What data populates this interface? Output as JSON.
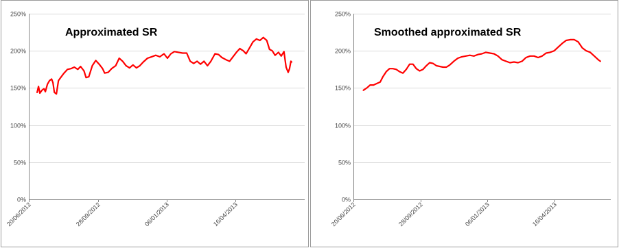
{
  "chart_data": [
    {
      "type": "line",
      "title": "Approximated SR",
      "x_ticks": [
        "20/06/2012",
        "28/09/2012",
        "06/01/2013",
        "16/04/2013"
      ],
      "y_ticks": [
        "0%",
        "50%",
        "100%",
        "150%",
        "200%",
        "250%"
      ],
      "ylim": [
        0,
        250
      ],
      "grid": true,
      "series": [
        {
          "color": "#ff0000",
          "points": [
            {
              "x": "2012-07-02",
              "y": 144
            },
            {
              "x": "2012-07-04",
              "y": 152
            },
            {
              "x": "2012-07-06",
              "y": 143
            },
            {
              "x": "2012-07-09",
              "y": 147
            },
            {
              "x": "2012-07-12",
              "y": 149
            },
            {
              "x": "2012-07-14",
              "y": 145
            },
            {
              "x": "2012-07-17",
              "y": 155
            },
            {
              "x": "2012-07-20",
              "y": 160
            },
            {
              "x": "2012-07-23",
              "y": 162
            },
            {
              "x": "2012-07-25",
              "y": 157
            },
            {
              "x": "2012-07-27",
              "y": 144
            },
            {
              "x": "2012-07-30",
              "y": 142
            },
            {
              "x": "2012-08-02",
              "y": 160
            },
            {
              "x": "2012-08-06",
              "y": 165
            },
            {
              "x": "2012-08-10",
              "y": 170
            },
            {
              "x": "2012-08-15",
              "y": 175
            },
            {
              "x": "2012-08-20",
              "y": 176
            },
            {
              "x": "2012-08-25",
              "y": 178
            },
            {
              "x": "2012-08-30",
              "y": 175
            },
            {
              "x": "2012-09-03",
              "y": 179
            },
            {
              "x": "2012-09-08",
              "y": 173
            },
            {
              "x": "2012-09-11",
              "y": 164
            },
            {
              "x": "2012-09-15",
              "y": 165
            },
            {
              "x": "2012-09-20",
              "y": 180
            },
            {
              "x": "2012-09-25",
              "y": 187
            },
            {
              "x": "2012-09-30",
              "y": 182
            },
            {
              "x": "2012-10-05",
              "y": 176
            },
            {
              "x": "2012-10-08",
              "y": 170
            },
            {
              "x": "2012-10-13",
              "y": 171
            },
            {
              "x": "2012-10-18",
              "y": 176
            },
            {
              "x": "2012-10-24",
              "y": 180
            },
            {
              "x": "2012-10-29",
              "y": 190
            },
            {
              "x": "2012-11-03",
              "y": 186
            },
            {
              "x": "2012-11-08",
              "y": 180
            },
            {
              "x": "2012-11-13",
              "y": 177
            },
            {
              "x": "2012-11-18",
              "y": 181
            },
            {
              "x": "2012-11-23",
              "y": 177
            },
            {
              "x": "2012-11-28",
              "y": 180
            },
            {
              "x": "2012-12-03",
              "y": 185
            },
            {
              "x": "2012-12-09",
              "y": 190
            },
            {
              "x": "2012-12-15",
              "y": 192
            },
            {
              "x": "2012-12-21",
              "y": 194
            },
            {
              "x": "2012-12-27",
              "y": 192
            },
            {
              "x": "2013-01-02",
              "y": 196
            },
            {
              "x": "2013-01-07",
              "y": 190
            },
            {
              "x": "2013-01-12",
              "y": 196
            },
            {
              "x": "2013-01-17",
              "y": 199
            },
            {
              "x": "2013-01-23",
              "y": 198
            },
            {
              "x": "2013-01-29",
              "y": 197
            },
            {
              "x": "2013-02-04",
              "y": 197
            },
            {
              "x": "2013-02-09",
              "y": 186
            },
            {
              "x": "2013-02-14",
              "y": 183
            },
            {
              "x": "2013-02-19",
              "y": 186
            },
            {
              "x": "2013-02-24",
              "y": 182
            },
            {
              "x": "2013-03-01",
              "y": 186
            },
            {
              "x": "2013-03-06",
              "y": 180
            },
            {
              "x": "2013-03-11",
              "y": 186
            },
            {
              "x": "2013-03-17",
              "y": 196
            },
            {
              "x": "2013-03-22",
              "y": 195
            },
            {
              "x": "2013-03-27",
              "y": 191
            },
            {
              "x": "2013-04-02",
              "y": 188
            },
            {
              "x": "2013-04-07",
              "y": 186
            },
            {
              "x": "2013-04-12",
              "y": 192
            },
            {
              "x": "2013-04-17",
              "y": 198
            },
            {
              "x": "2013-04-22",
              "y": 203
            },
            {
              "x": "2013-04-27",
              "y": 200
            },
            {
              "x": "2013-05-01",
              "y": 196
            },
            {
              "x": "2013-05-06",
              "y": 204
            },
            {
              "x": "2013-05-11",
              "y": 212
            },
            {
              "x": "2013-05-16",
              "y": 216
            },
            {
              "x": "2013-05-21",
              "y": 214
            },
            {
              "x": "2013-05-26",
              "y": 218
            },
            {
              "x": "2013-05-31",
              "y": 214
            },
            {
              "x": "2013-06-04",
              "y": 202
            },
            {
              "x": "2013-06-08",
              "y": 200
            },
            {
              "x": "2013-06-12",
              "y": 194
            },
            {
              "x": "2013-06-17",
              "y": 198
            },
            {
              "x": "2013-06-21",
              "y": 193
            },
            {
              "x": "2013-06-25",
              "y": 199
            },
            {
              "x": "2013-06-28",
              "y": 178
            },
            {
              "x": "2013-07-01",
              "y": 171
            },
            {
              "x": "2013-07-03",
              "y": 176
            },
            {
              "x": "2013-07-05",
              "y": 186
            },
            {
              "x": "2013-07-06",
              "y": 185
            }
          ]
        }
      ]
    },
    {
      "type": "line",
      "title": "Smoothed approximated SR",
      "x_ticks": [
        "20/06/2012",
        "28/09/2012",
        "06/01/2013",
        "16/04/2013"
      ],
      "y_ticks": [
        "0%",
        "50%",
        "100%",
        "150%",
        "200%",
        "250%"
      ],
      "ylim": [
        0,
        250
      ],
      "grid": true,
      "series": [
        {
          "color": "#ff0000",
          "points": [
            {
              "x": "2012-07-05",
              "y": 147
            },
            {
              "x": "2012-07-10",
              "y": 150
            },
            {
              "x": "2012-07-15",
              "y": 154
            },
            {
              "x": "2012-07-20",
              "y": 154
            },
            {
              "x": "2012-07-25",
              "y": 156
            },
            {
              "x": "2012-07-30",
              "y": 158
            },
            {
              "x": "2012-08-03",
              "y": 165
            },
            {
              "x": "2012-08-08",
              "y": 172
            },
            {
              "x": "2012-08-13",
              "y": 176
            },
            {
              "x": "2012-08-18",
              "y": 176
            },
            {
              "x": "2012-08-23",
              "y": 175
            },
            {
              "x": "2012-08-28",
              "y": 172
            },
            {
              "x": "2012-09-02",
              "y": 170
            },
            {
              "x": "2012-09-07",
              "y": 175
            },
            {
              "x": "2012-09-12",
              "y": 182
            },
            {
              "x": "2012-09-17",
              "y": 182
            },
            {
              "x": "2012-09-22",
              "y": 176
            },
            {
              "x": "2012-09-27",
              "y": 173
            },
            {
              "x": "2012-10-02",
              "y": 175
            },
            {
              "x": "2012-10-07",
              "y": 180
            },
            {
              "x": "2012-10-12",
              "y": 184
            },
            {
              "x": "2012-10-17",
              "y": 183
            },
            {
              "x": "2012-10-22",
              "y": 180
            },
            {
              "x": "2012-10-27",
              "y": 179
            },
            {
              "x": "2012-11-01",
              "y": 178
            },
            {
              "x": "2012-11-06",
              "y": 178
            },
            {
              "x": "2012-11-11",
              "y": 181
            },
            {
              "x": "2012-11-17",
              "y": 186
            },
            {
              "x": "2012-11-23",
              "y": 190
            },
            {
              "x": "2012-11-29",
              "y": 192
            },
            {
              "x": "2012-12-05",
              "y": 193
            },
            {
              "x": "2012-12-11",
              "y": 194
            },
            {
              "x": "2012-12-17",
              "y": 193
            },
            {
              "x": "2012-12-23",
              "y": 195
            },
            {
              "x": "2012-12-29",
              "y": 196
            },
            {
              "x": "2013-01-04",
              "y": 198
            },
            {
              "x": "2013-01-10",
              "y": 197
            },
            {
              "x": "2013-01-16",
              "y": 196
            },
            {
              "x": "2013-01-22",
              "y": 193
            },
            {
              "x": "2013-01-28",
              "y": 188
            },
            {
              "x": "2013-02-03",
              "y": 186
            },
            {
              "x": "2013-02-09",
              "y": 184
            },
            {
              "x": "2013-02-15",
              "y": 185
            },
            {
              "x": "2013-02-21",
              "y": 184
            },
            {
              "x": "2013-02-27",
              "y": 186
            },
            {
              "x": "2013-03-05",
              "y": 191
            },
            {
              "x": "2013-03-11",
              "y": 193
            },
            {
              "x": "2013-03-17",
              "y": 193
            },
            {
              "x": "2013-03-23",
              "y": 191
            },
            {
              "x": "2013-03-29",
              "y": 193
            },
            {
              "x": "2013-04-04",
              "y": 197
            },
            {
              "x": "2013-04-10",
              "y": 198
            },
            {
              "x": "2013-04-16",
              "y": 200
            },
            {
              "x": "2013-04-22",
              "y": 205
            },
            {
              "x": "2013-04-28",
              "y": 210
            },
            {
              "x": "2013-05-04",
              "y": 214
            },
            {
              "x": "2013-05-10",
              "y": 215
            },
            {
              "x": "2013-05-16",
              "y": 215
            },
            {
              "x": "2013-05-22",
              "y": 212
            },
            {
              "x": "2013-05-28",
              "y": 204
            },
            {
              "x": "2013-06-03",
              "y": 200
            },
            {
              "x": "2013-06-09",
              "y": 198
            },
            {
              "x": "2013-06-15",
              "y": 193
            },
            {
              "x": "2013-06-21",
              "y": 188
            },
            {
              "x": "2013-06-24",
              "y": 186
            }
          ]
        }
      ]
    }
  ]
}
